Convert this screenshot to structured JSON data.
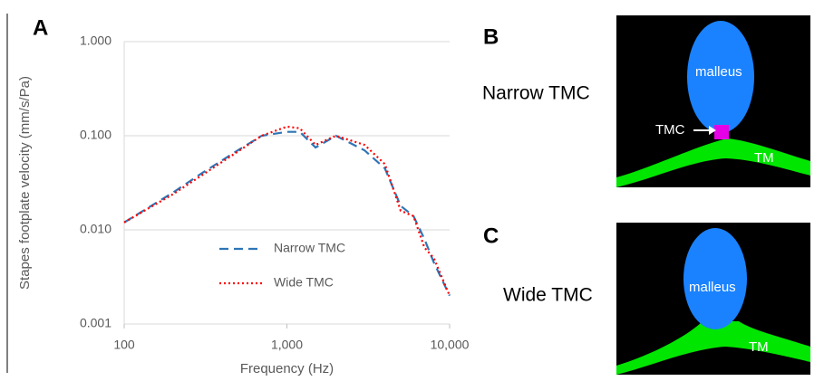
{
  "chart_data": {
    "type": "line",
    "panel_label": "A",
    "xlabel": "Frequency (Hz)",
    "ylabel": "Stapes footplate velocity (mm/s/Pa)",
    "xscale": "log",
    "yscale": "log",
    "x": [
      100,
      200,
      300,
      500,
      700,
      1000,
      1200,
      1500,
      2000,
      3000,
      4000,
      5000,
      6000,
      7000,
      8000,
      10000
    ],
    "series": [
      {
        "name": "Narrow TMC",
        "color": "#2e75b6",
        "dash": "10 6",
        "values": [
          0.012,
          0.025,
          0.04,
          0.07,
          0.1,
          0.11,
          0.11,
          0.075,
          0.1,
          0.07,
          0.045,
          0.018,
          0.014,
          0.008,
          0.0045,
          0.002
        ]
      },
      {
        "name": "Wide TMC",
        "color": "#ff0000",
        "dash": "2 3",
        "values": [
          0.012,
          0.024,
          0.038,
          0.068,
          0.1,
          0.125,
          0.12,
          0.08,
          0.1,
          0.08,
          0.05,
          0.016,
          0.014,
          0.0065,
          0.005,
          0.002
        ]
      }
    ],
    "xlim": [
      100,
      10000
    ],
    "ylim": [
      0.001,
      1
    ],
    "xticks": [
      100,
      {
        "value": 1000,
        "label": "1,000"
      },
      {
        "value": 10000,
        "label": "10,000"
      }
    ],
    "yticks": [
      0.001,
      {
        "value": 0.01,
        "label": "0.010"
      },
      {
        "value": 0.1,
        "label": "0.100"
      },
      {
        "value": 1,
        "label": "1.000"
      }
    ],
    "grid": true,
    "legend": "bottom-center"
  },
  "panels": [
    {
      "label": "B",
      "condition": "Narrow TMC",
      "malleus": "malleus",
      "tmc": "TMC",
      "tm": "TM"
    },
    {
      "label": "C",
      "condition": "Wide TMC",
      "malleus": "malleus",
      "tm": "TM"
    }
  ]
}
